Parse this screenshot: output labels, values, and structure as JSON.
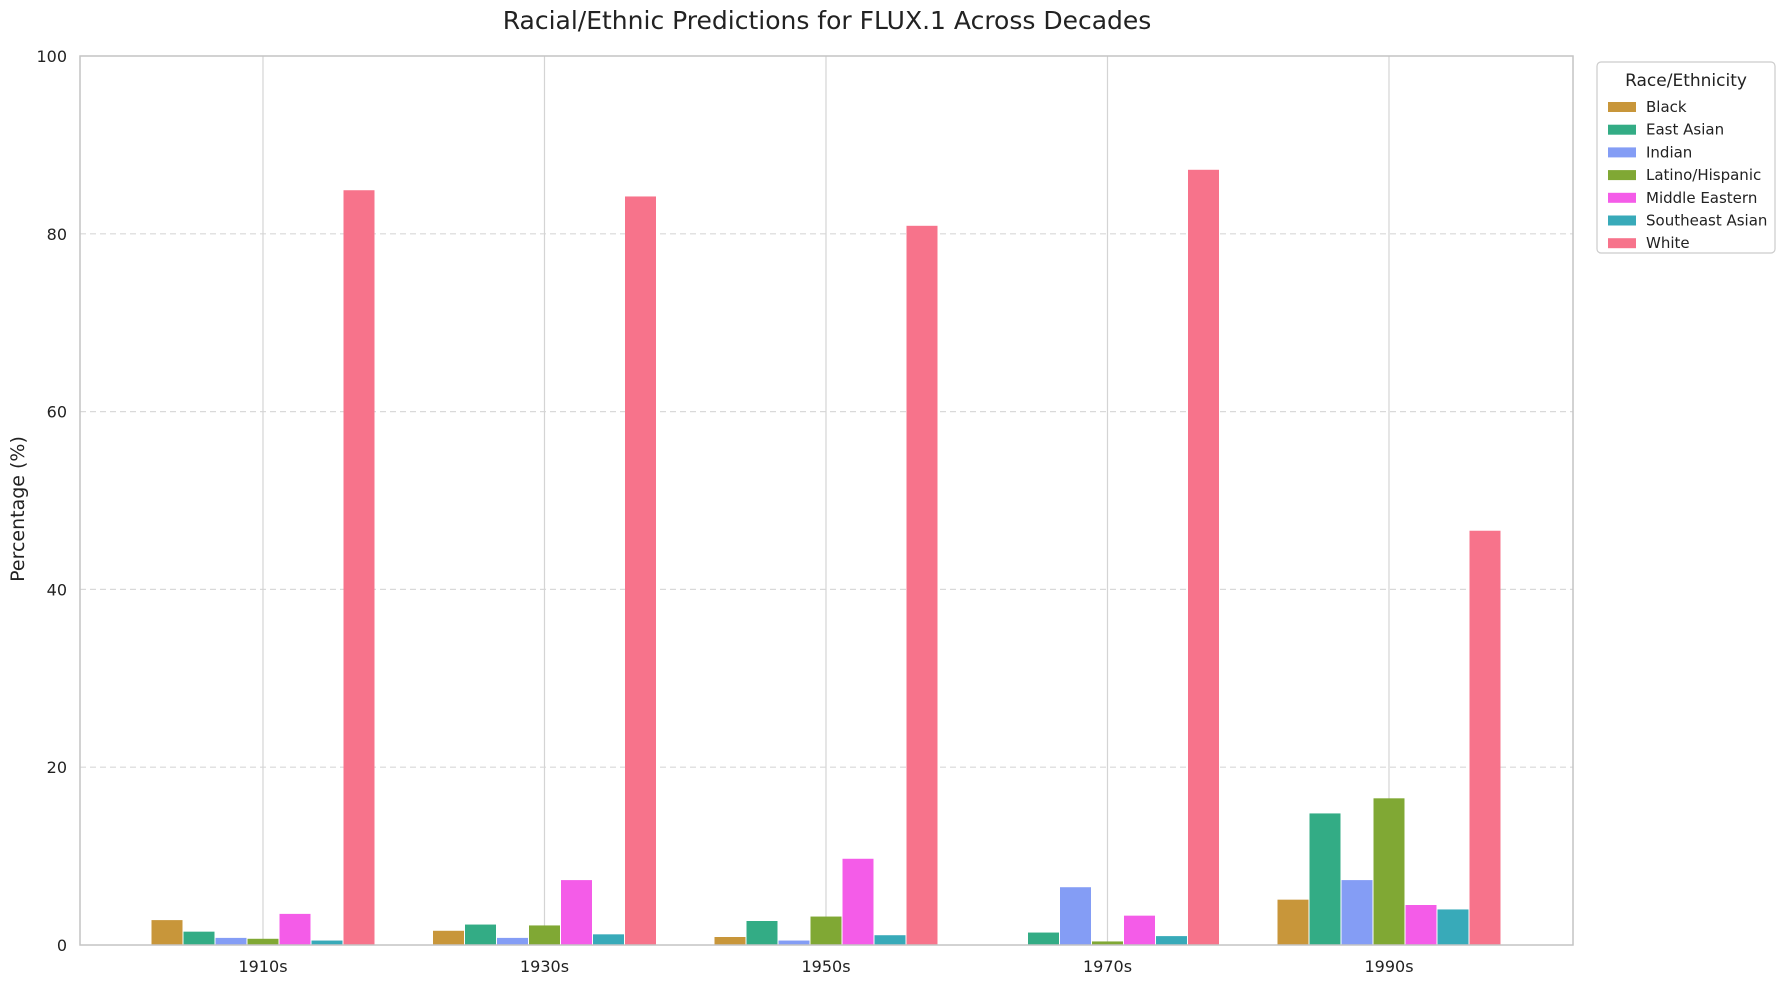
{
  "chart_data": {
    "type": "bar",
    "title": "Racial/Ethnic Predictions for FLUX.1 Across Decades",
    "xlabel": "",
    "ylabel": "Percentage (%)",
    "ylim": [
      0,
      100
    ],
    "yticks": [
      "0",
      "20",
      "40",
      "60",
      "80",
      "100"
    ],
    "grid": "y-dashed",
    "legend_title": "Race/Ethnicity",
    "legend_position": "outside-top-right",
    "categories": [
      "1910s",
      "1930s",
      "1950s",
      "1970s",
      "1990s"
    ],
    "series": [
      {
        "name": "Black",
        "color": "#c8963a",
        "values": [
          2.8,
          1.6,
          0.9,
          0.0,
          5.1
        ]
      },
      {
        "name": "East Asian",
        "color": "#33ac85",
        "values": [
          1.5,
          2.3,
          2.7,
          1.4,
          14.8
        ]
      },
      {
        "name": "Indian",
        "color": "#849df5",
        "values": [
          0.8,
          0.8,
          0.5,
          6.5,
          7.3
        ]
      },
      {
        "name": "Latino/Hispanic",
        "color": "#80a834",
        "values": [
          0.7,
          2.2,
          3.2,
          0.4,
          16.5
        ]
      },
      {
        "name": "Middle Eastern",
        "color": "#f45ce8",
        "values": [
          3.5,
          7.3,
          9.7,
          3.3,
          4.5
        ]
      },
      {
        "name": "Southeast Asian",
        "color": "#38aab9",
        "values": [
          0.5,
          1.2,
          1.1,
          1.0,
          4.0
        ]
      },
      {
        "name": "White",
        "color": "#f7738b",
        "values": [
          84.9,
          84.2,
          80.9,
          87.2,
          46.6
        ]
      }
    ]
  }
}
